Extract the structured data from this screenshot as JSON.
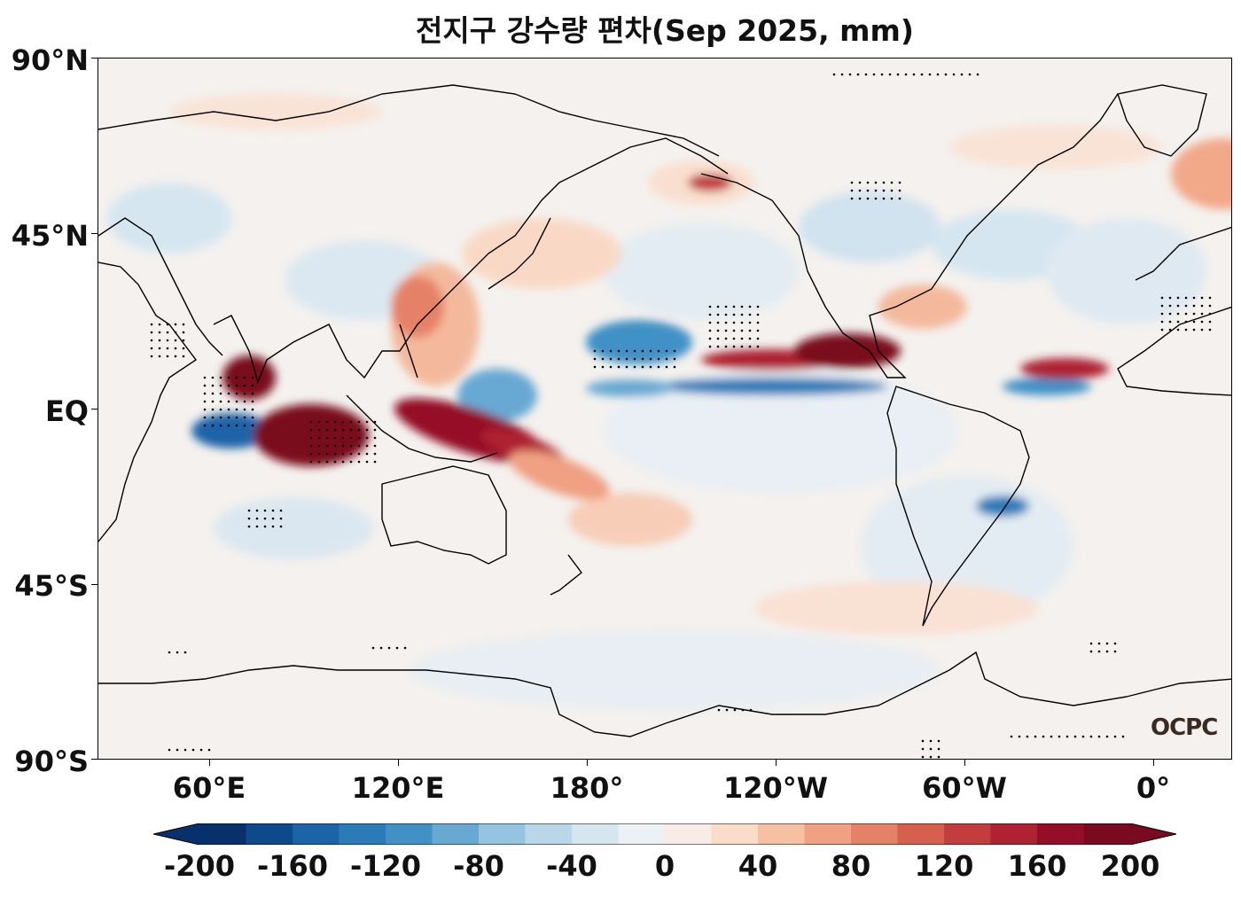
{
  "title": "전지구 강수량 편차(Sep 2025, mm)",
  "logo_text": "OCPC",
  "latitude_labels": [
    "90°N",
    "45°N",
    "EQ",
    "45°S",
    "90°S"
  ],
  "longitude_labels": [
    "60°E",
    "120°E",
    "180°",
    "120°W",
    "60°W",
    "0°"
  ],
  "colorbar": {
    "tick_labels": [
      "-200",
      "-160",
      "-120",
      "-80",
      "-40",
      "0",
      "40",
      "80",
      "120",
      "160",
      "200"
    ],
    "colors": [
      "#08306b",
      "#0d4a8c",
      "#1c64a8",
      "#2b7bba",
      "#3f91c6",
      "#67a9d3",
      "#94c4df",
      "#b9d7e8",
      "#d6e6f0",
      "#ecf1f5",
      "#f8ede6",
      "#fbdcc9",
      "#f7c0a3",
      "#f0a083",
      "#e58166",
      "#d6604d",
      "#c23e3e",
      "#ae2232",
      "#950e27",
      "#7a0a1f"
    ],
    "extend": "both"
  },
  "map_data": {
    "projection": "plate carree, central longitude 180",
    "longitude_range": [
      30,
      390
    ],
    "latitude_range": [
      -90,
      90
    ],
    "stippling": "dots mark significant anomalies",
    "colormap": "RdBu_r"
  }
}
